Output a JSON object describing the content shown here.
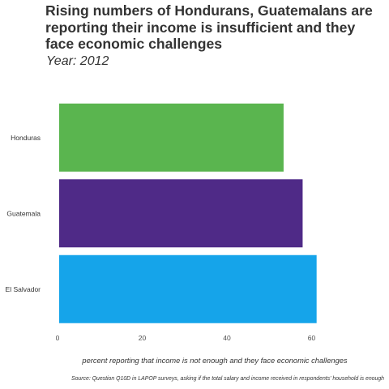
{
  "chart_data": {
    "type": "bar",
    "orientation": "horizontal",
    "title": "Rising numbers of Hondurans, Guatemalans are reporting their income is insufficient and they face economic challenges",
    "subtitle": "Year: 2012",
    "categories": [
      "Honduras",
      "Guatemala",
      "El Salvador"
    ],
    "values": [
      53,
      57.5,
      60.8
    ],
    "colors": [
      "#5ab54f",
      "#4f2a87",
      "#15a4ea"
    ],
    "xlabel": "percent reporting that income is not enough and they face economic challenges",
    "ylabel": "",
    "xlim": [
      0,
      65
    ],
    "xticks": [
      0,
      20,
      40,
      60
    ],
    "grid": false,
    "legend": "none",
    "caption": "Source: Question Q10D in LAPOP surveys, asking if the total salary and income received in respondents' household is enough"
  }
}
